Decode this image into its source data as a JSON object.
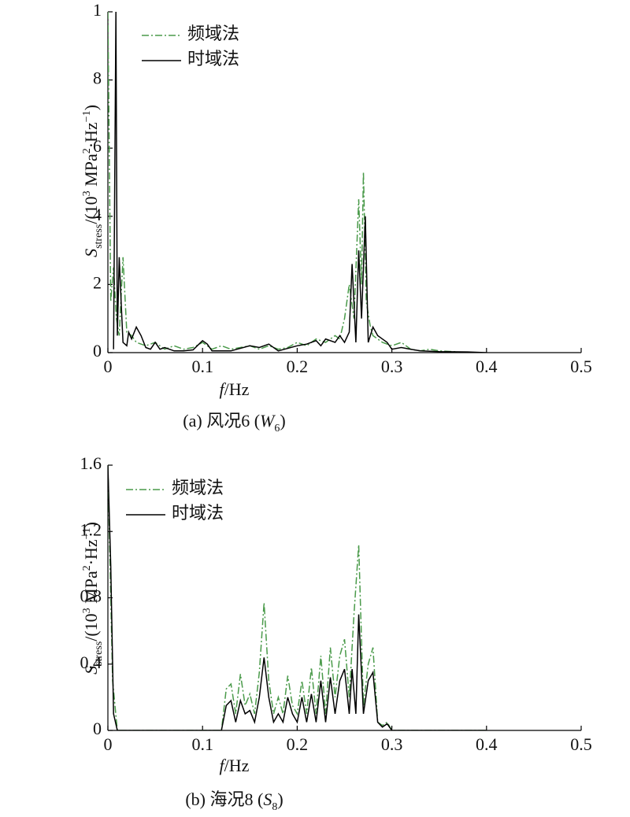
{
  "chart_data": [
    {
      "type": "line",
      "xlabel": [
        "f",
        "/Hz"
      ],
      "ylabel": [
        "S",
        "stress",
        "/(10",
        "3",
        " MPa",
        "2",
        "·Hz",
        "−1",
        ")"
      ],
      "caption": [
        "(a) 风况6 (",
        "W",
        "6",
        ")"
      ],
      "xlim": [
        0,
        0.5
      ],
      "xticks": [
        0,
        0.1,
        0.2,
        0.3,
        0.4,
        0.5
      ],
      "ylim": [
        0,
        10
      ],
      "yticks": [
        0,
        2,
        4,
        6,
        8,
        {
          "value": 10,
          "label": "1"
        }
      ],
      "legend": "upper left",
      "series": [
        {
          "name": "频域法",
          "color": "#4a9a4a",
          "style": "dash-dot",
          "x": [
            0,
            0.003,
            0.006,
            0.009,
            0.012,
            0.016,
            0.02,
            0.025,
            0.03,
            0.04,
            0.05,
            0.06,
            0.07,
            0.08,
            0.09,
            0.1,
            0.11,
            0.12,
            0.13,
            0.14,
            0.15,
            0.16,
            0.17,
            0.18,
            0.19,
            0.2,
            0.21,
            0.22,
            0.23,
            0.24,
            0.245,
            0.25,
            0.255,
            0.26,
            0.265,
            0.268,
            0.27,
            0.273,
            0.277,
            0.28,
            0.29,
            0.3,
            0.31,
            0.32,
            0.33,
            0.34,
            0.35,
            0.37
          ],
          "values": [
            10,
            1.5,
            2.5,
            1.0,
            0.5,
            2.8,
            0.6,
            0.5,
            0.3,
            0.2,
            0.3,
            0.1,
            0.2,
            0.1,
            0.15,
            0.3,
            0.1,
            0.2,
            0.1,
            0.15,
            0.2,
            0.1,
            0.2,
            0.1,
            0.15,
            0.3,
            0.2,
            0.4,
            0.3,
            0.5,
            0.4,
            1.0,
            2.0,
            1.0,
            4.5,
            2.0,
            5.3,
            1.5,
            0.8,
            0.5,
            0.3,
            0.2,
            0.3,
            0.1,
            0.05,
            0.1,
            0.05,
            0.02
          ]
        },
        {
          "name": "时域法",
          "color": "#000000",
          "style": "solid",
          "x": [
            0.006,
            0.0085,
            0.01,
            0.012,
            0.014,
            0.016,
            0.02,
            0.022,
            0.025,
            0.03,
            0.035,
            0.04,
            0.045,
            0.05,
            0.055,
            0.06,
            0.065,
            0.07,
            0.08,
            0.09,
            0.1,
            0.105,
            0.11,
            0.13,
            0.15,
            0.16,
            0.17,
            0.18,
            0.2,
            0.21,
            0.22,
            0.225,
            0.23,
            0.24,
            0.245,
            0.25,
            0.255,
            0.258,
            0.262,
            0.265,
            0.268,
            0.272,
            0.275,
            0.28,
            0.285,
            0.29,
            0.295,
            0.3,
            0.31,
            0.32,
            0.33,
            0.35,
            0.38,
            0.4
          ],
          "values": [
            0.1,
            10,
            0.5,
            2.8,
            1.5,
            0.3,
            0.2,
            0.6,
            0.4,
            0.75,
            0.5,
            0.15,
            0.1,
            0.3,
            0.1,
            0.15,
            0.1,
            0.05,
            0.05,
            0.08,
            0.35,
            0.25,
            0.05,
            0.05,
            0.2,
            0.15,
            0.25,
            0.05,
            0.2,
            0.25,
            0.35,
            0.2,
            0.4,
            0.3,
            0.5,
            0.3,
            0.6,
            2.6,
            0.3,
            3.0,
            1.0,
            4.0,
            0.3,
            0.75,
            0.5,
            0.4,
            0.3,
            0.1,
            0.15,
            0.1,
            0.05,
            0.03,
            0.02,
            0
          ]
        }
      ]
    },
    {
      "type": "line",
      "xlabel": [
        "f",
        "/Hz"
      ],
      "ylabel": [
        "S",
        "stress",
        "/(10",
        "3",
        " MPa",
        "2",
        "·Hz",
        "−1",
        ")"
      ],
      "caption": [
        "(b) 海况8 (",
        "S",
        "8",
        ")"
      ],
      "xlim": [
        0,
        0.5
      ],
      "xticks": [
        0,
        0.1,
        0.2,
        0.3,
        0.4,
        0.5
      ],
      "ylim": [
        0,
        1.6
      ],
      "yticks": [
        0,
        0.4,
        0.8,
        1.2,
        1.6
      ],
      "legend": "upper left",
      "series": [
        {
          "name": "频域法",
          "color": "#4a9a4a",
          "style": "dash-dot",
          "x": [
            0,
            0.005,
            0.01,
            0.12,
            0.125,
            0.13,
            0.135,
            0.14,
            0.145,
            0.15,
            0.155,
            0.16,
            0.165,
            0.17,
            0.175,
            0.18,
            0.185,
            0.19,
            0.195,
            0.2,
            0.205,
            0.21,
            0.215,
            0.22,
            0.225,
            0.23,
            0.235,
            0.24,
            0.245,
            0.25,
            0.255,
            0.26,
            0.265,
            0.27,
            0.275,
            0.28,
            0.285,
            0.29,
            0.295,
            0.3,
            0.4
          ],
          "values": [
            1.6,
            0.3,
            0,
            0,
            0.25,
            0.28,
            0.1,
            0.34,
            0.15,
            0.22,
            0.1,
            0.35,
            0.77,
            0.3,
            0.1,
            0.2,
            0.1,
            0.33,
            0.15,
            0.1,
            0.3,
            0.1,
            0.38,
            0.1,
            0.45,
            0.1,
            0.5,
            0.2,
            0.45,
            0.55,
            0.2,
            0.7,
            1.12,
            0.15,
            0.4,
            0.5,
            0.05,
            0.03,
            0.05,
            0,
            0
          ]
        },
        {
          "name": "时域法",
          "color": "#000000",
          "style": "solid",
          "x": [
            0,
            0.003,
            0.006,
            0.01,
            0.12,
            0.125,
            0.13,
            0.135,
            0.14,
            0.145,
            0.15,
            0.155,
            0.16,
            0.165,
            0.17,
            0.175,
            0.18,
            0.185,
            0.19,
            0.195,
            0.2,
            0.205,
            0.21,
            0.215,
            0.22,
            0.225,
            0.23,
            0.235,
            0.24,
            0.245,
            0.25,
            0.255,
            0.258,
            0.262,
            0.265,
            0.27,
            0.275,
            0.28,
            0.285,
            0.29,
            0.295,
            0.3,
            0.35,
            0.4
          ],
          "values": [
            1.6,
            1.0,
            0.1,
            0,
            0,
            0.15,
            0.18,
            0.05,
            0.18,
            0.1,
            0.12,
            0.05,
            0.2,
            0.44,
            0.2,
            0.05,
            0.1,
            0.05,
            0.2,
            0.1,
            0.05,
            0.2,
            0.05,
            0.22,
            0.05,
            0.3,
            0.05,
            0.32,
            0.1,
            0.3,
            0.37,
            0.1,
            0.37,
            0.1,
            0.7,
            0.1,
            0.3,
            0.35,
            0.05,
            0.02,
            0.04,
            0,
            0,
            0
          ]
        }
      ]
    }
  ]
}
